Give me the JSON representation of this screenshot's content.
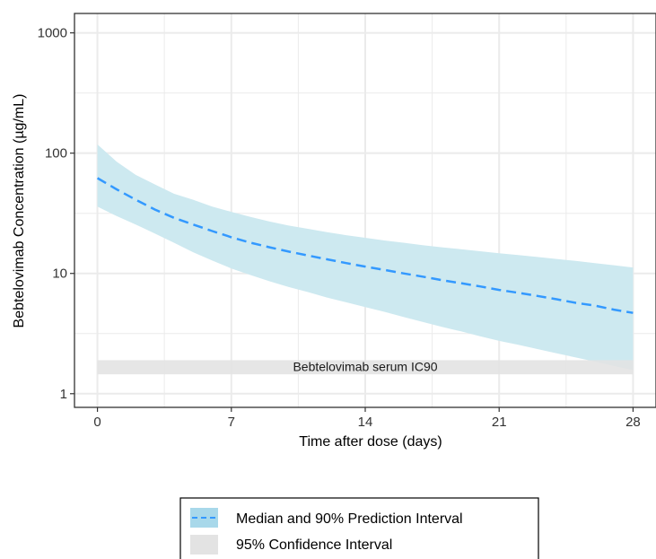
{
  "chart_data": {
    "type": "line",
    "xlabel": "Time after dose (days)",
    "ylabel": "Bebtelovimab Concentration (µg/mL)",
    "x_scale": "linear",
    "y_scale": "log",
    "xlim": [
      -1.2,
      29.2
    ],
    "ylim": [
      0.77,
      1450
    ],
    "x_ticks": [
      0,
      7,
      14,
      21,
      28
    ],
    "x_tick_labels": [
      "0",
      "7",
      "14",
      "21",
      "28"
    ],
    "y_ticks": [
      1,
      10,
      100,
      1000
    ],
    "y_tick_labels": [
      "1",
      "10",
      "100",
      "1000"
    ],
    "grid": true,
    "series": [
      {
        "name": "Median and 90% Prediction Interval",
        "x": [
          0,
          1,
          2,
          3,
          4,
          5,
          6,
          7,
          8,
          9,
          10,
          11,
          12,
          13,
          14,
          15,
          16,
          17,
          18,
          19,
          20,
          21,
          22,
          23,
          24,
          25,
          26,
          27,
          28
        ],
        "median": [
          62,
          50,
          41,
          34,
          29,
          25.5,
          22.5,
          20,
          18,
          16.5,
          15.2,
          14.1,
          13.1,
          12.2,
          11.4,
          10.7,
          10,
          9.4,
          8.8,
          8.3,
          7.8,
          7.3,
          6.9,
          6.5,
          6.1,
          5.7,
          5.4,
          5.0,
          4.7
        ],
        "upper": [
          118,
          85,
          66,
          55,
          46,
          41,
          36,
          32.5,
          29.5,
          27,
          25,
          23.5,
          22,
          20.8,
          19.8,
          18.8,
          18,
          17.2,
          16.5,
          15.9,
          15.3,
          14.7,
          14.2,
          13.7,
          13.2,
          12.7,
          12.2,
          11.7,
          11.2
        ],
        "lower": [
          36,
          30,
          25.5,
          21.5,
          18,
          15,
          12.8,
          11,
          9.7,
          8.6,
          7.7,
          7.0,
          6.3,
          5.75,
          5.25,
          4.8,
          4.35,
          3.95,
          3.6,
          3.3,
          3.0,
          2.75,
          2.55,
          2.35,
          2.17,
          2.0,
          1.85,
          1.7,
          1.57
        ]
      },
      {
        "name": "95% Confidence Interval",
        "x": [
          0,
          28
        ],
        "lower": [
          1.45,
          1.45
        ],
        "upper": [
          1.9,
          1.9
        ]
      }
    ],
    "annotations": [
      {
        "text": "Bebtelovimab serum IC90",
        "x": 14,
        "y": 1.68
      }
    ],
    "legend": {
      "position": "bottom",
      "entries": [
        "Median and 90% Prediction Interval",
        "95% Confidence Interval"
      ]
    },
    "colors": {
      "median_line": "#3399ff",
      "prediction_band": "#cde9f0",
      "legend_pi_swatch": "#a8d8ea",
      "confidence_band": "#e3e3e3",
      "grid": "#ebebeb",
      "panel_border": "#333333"
    }
  }
}
